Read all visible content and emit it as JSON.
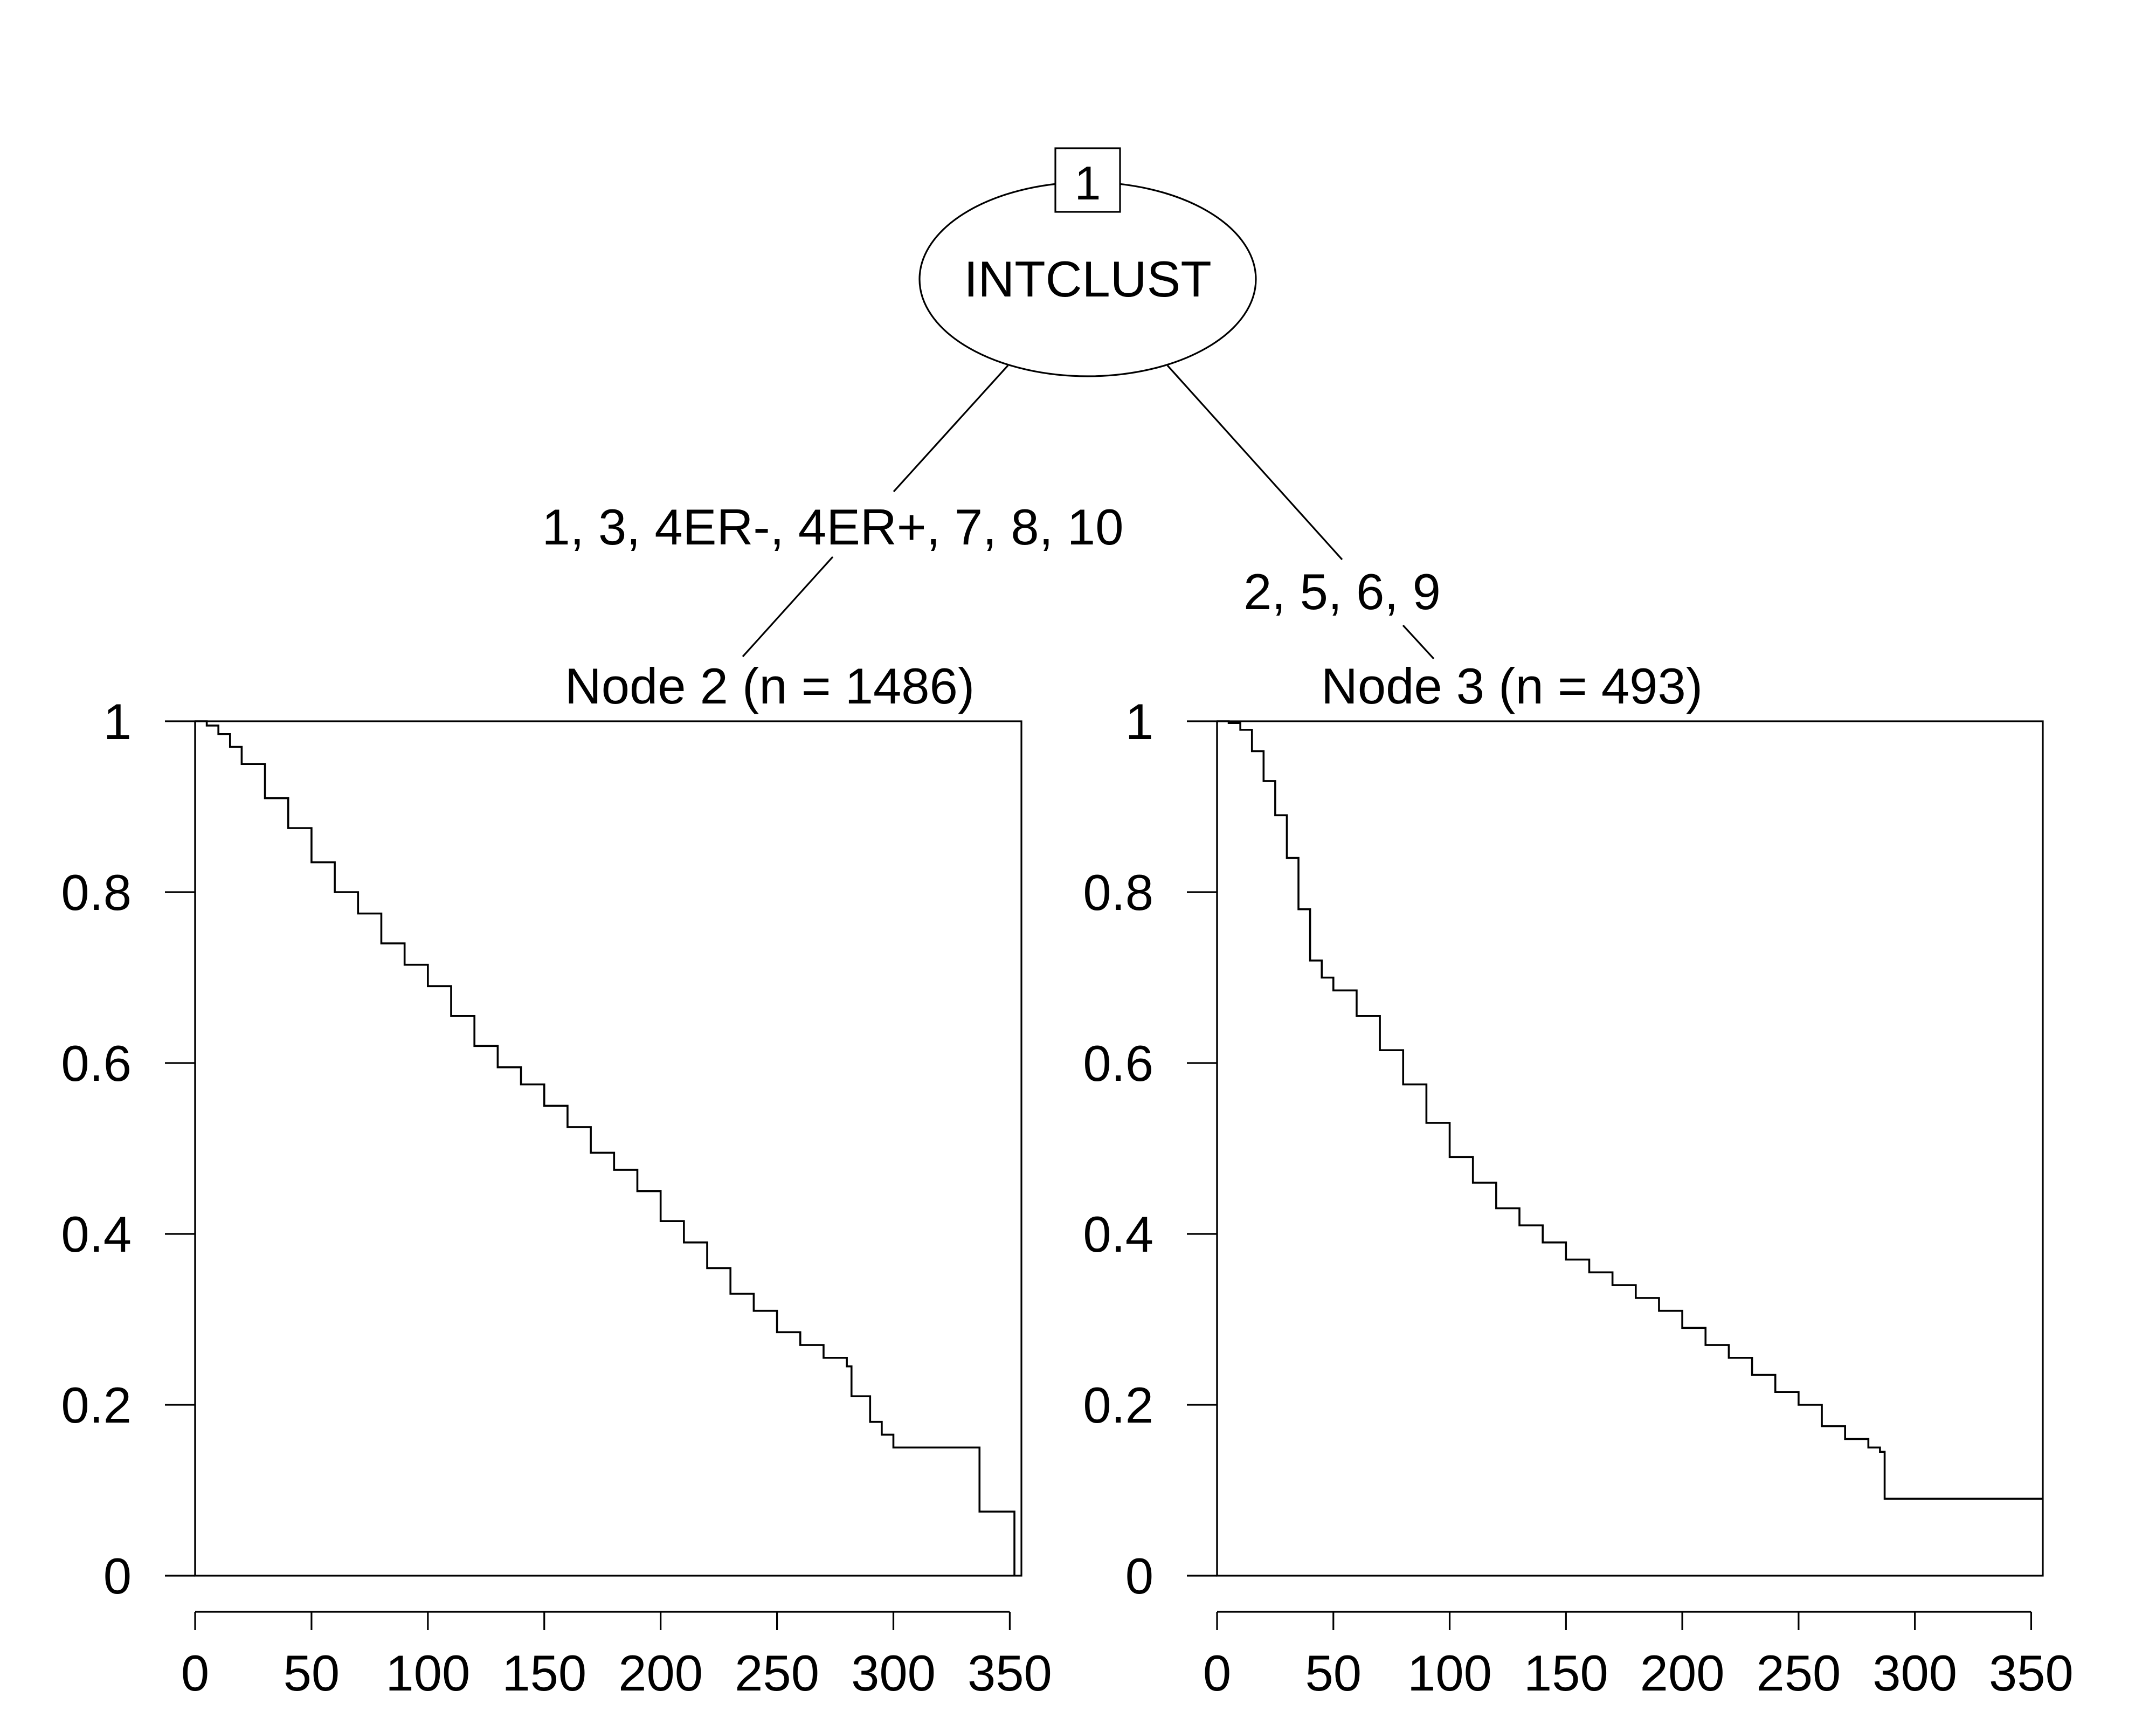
{
  "tree": {
    "root": {
      "id": "1",
      "variable": "INTCLUST"
    },
    "splits": {
      "left_label": "1, 3, 4ER-, 4ER+, 7, 8, 10",
      "right_label": "2, 5, 6, 9"
    }
  },
  "chart_data": [
    {
      "type": "line",
      "step": true,
      "title": "Node 2 (n = 1486)",
      "xlabel": "",
      "ylabel": "",
      "xlim": [
        0,
        355
      ],
      "ylim": [
        0,
        1
      ],
      "x_ticks": [
        "0",
        "50",
        "100",
        "150",
        "200",
        "250",
        "300",
        "350"
      ],
      "y_ticks": [
        "0",
        "0.2",
        "0.4",
        "0.6",
        "0.8",
        "1"
      ],
      "series": [
        {
          "x": [
            0,
            5,
            10,
            15,
            20,
            30,
            40,
            50,
            60,
            70,
            80,
            90,
            100,
            110,
            120,
            130,
            140,
            150,
            160,
            170,
            180,
            190,
            200,
            210,
            220,
            230,
            240,
            250,
            260,
            270,
            280,
            282,
            290,
            295,
            300,
            310,
            320,
            335,
            337,
            350,
            352
          ],
          "y": [
            1.0,
            0.995,
            0.985,
            0.97,
            0.95,
            0.91,
            0.875,
            0.835,
            0.8,
            0.775,
            0.74,
            0.715,
            0.69,
            0.655,
            0.62,
            0.595,
            0.575,
            0.55,
            0.525,
            0.495,
            0.475,
            0.45,
            0.415,
            0.39,
            0.36,
            0.33,
            0.31,
            0.285,
            0.27,
            0.255,
            0.245,
            0.21,
            0.18,
            0.165,
            0.15,
            0.15,
            0.15,
            0.15,
            0.075,
            0.075,
            0.0
          ]
        }
      ]
    },
    {
      "type": "line",
      "step": true,
      "title": "Node 3 (n = 493)",
      "xlabel": "",
      "ylabel": "",
      "xlim": [
        0,
        355
      ],
      "ylim": [
        0,
        1
      ],
      "x_ticks": [
        "0",
        "50",
        "100",
        "150",
        "200",
        "250",
        "300",
        "350"
      ],
      "y_ticks": [
        "0",
        "0.2",
        "0.4",
        "0.6",
        "0.8",
        "1"
      ],
      "series": [
        {
          "x": [
            0,
            5,
            10,
            15,
            20,
            25,
            30,
            35,
            40,
            45,
            50,
            60,
            70,
            80,
            90,
            100,
            110,
            120,
            130,
            140,
            150,
            160,
            170,
            180,
            190,
            200,
            210,
            220,
            230,
            240,
            250,
            260,
            270,
            280,
            285,
            287,
            300,
            320,
            340,
            355
          ],
          "y": [
            1.0,
            0.998,
            0.99,
            0.965,
            0.93,
            0.89,
            0.84,
            0.78,
            0.72,
            0.7,
            0.685,
            0.655,
            0.615,
            0.575,
            0.53,
            0.49,
            0.46,
            0.43,
            0.41,
            0.39,
            0.37,
            0.355,
            0.34,
            0.325,
            0.31,
            0.29,
            0.27,
            0.255,
            0.235,
            0.215,
            0.2,
            0.175,
            0.16,
            0.15,
            0.145,
            0.09,
            0.09,
            0.09,
            0.09,
            0.09
          ]
        }
      ]
    }
  ]
}
